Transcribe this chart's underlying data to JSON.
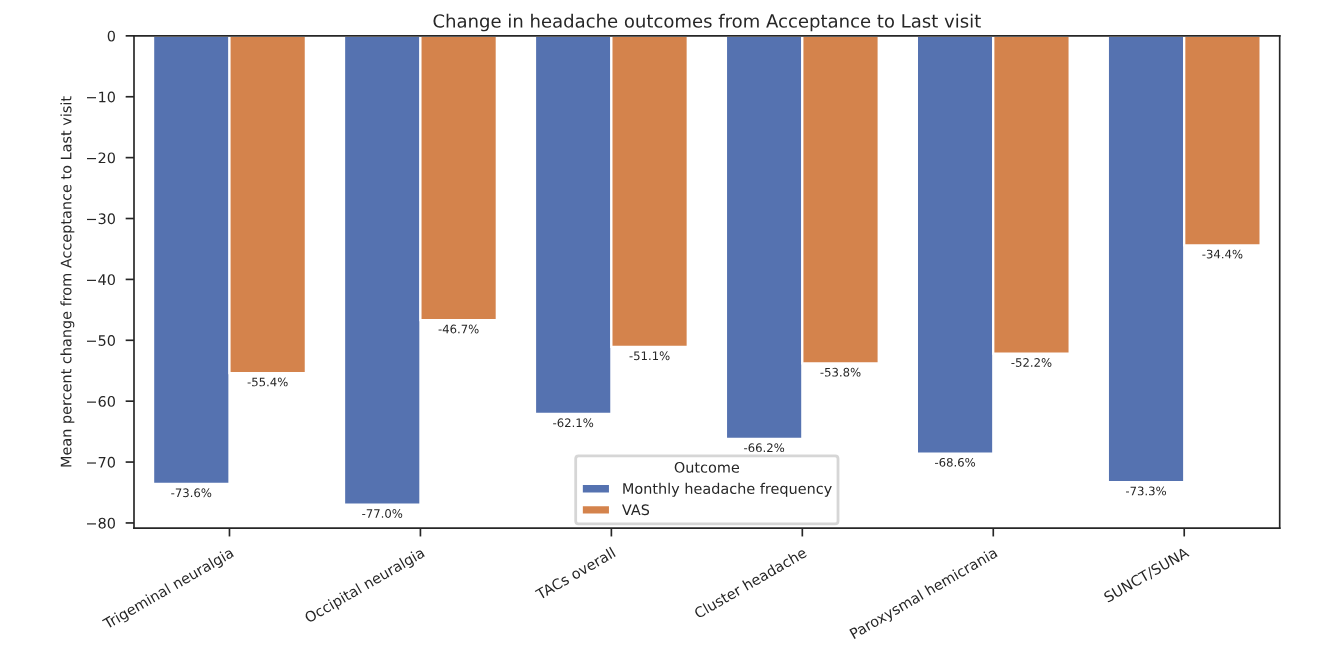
{
  "chart_data": {
    "type": "bar",
    "title": "Change in headache outcomes from Acceptance to Last visit",
    "ylabel": "Mean percent change from Acceptance to Last visit",
    "legend_title": "Outcome",
    "categories": [
      "Trigeminal neuralgia",
      "Occipital neuralgia",
      "TACs overall",
      "Cluster headache",
      "Paroxysmal hemicrania",
      "SUNCT/SUNA"
    ],
    "series": [
      {
        "name": "Monthly headache frequency",
        "color": "#5572b0",
        "values": [
          -73.6,
          -77.0,
          -62.1,
          -66.2,
          -68.6,
          -73.3
        ],
        "value_labels": [
          "-73.6%",
          "-77.0%",
          "-62.1%",
          "-66.2%",
          "-68.6%",
          "-73.3%"
        ]
      },
      {
        "name": "VAS",
        "color": "#d4834c",
        "values": [
          -55.4,
          -46.7,
          -51.1,
          -53.8,
          -52.2,
          -34.4
        ],
        "value_labels": [
          "-55.4%",
          "-46.7%",
          "-51.1%",
          "-53.8%",
          "-52.2%",
          "-34.4%"
        ]
      }
    ],
    "ylim": [
      -80.85,
      0
    ],
    "yticks": [
      {
        "value": -80,
        "label": "−80"
      },
      {
        "value": -70,
        "label": "−70"
      },
      {
        "value": -60,
        "label": "−60"
      },
      {
        "value": -50,
        "label": "−50"
      },
      {
        "value": -40,
        "label": "−40"
      },
      {
        "value": -30,
        "label": "−30"
      },
      {
        "value": -20,
        "label": "−20"
      },
      {
        "value": -10,
        "label": "−10"
      },
      0
    ],
    "legend": "bottom",
    "grid": false
  }
}
